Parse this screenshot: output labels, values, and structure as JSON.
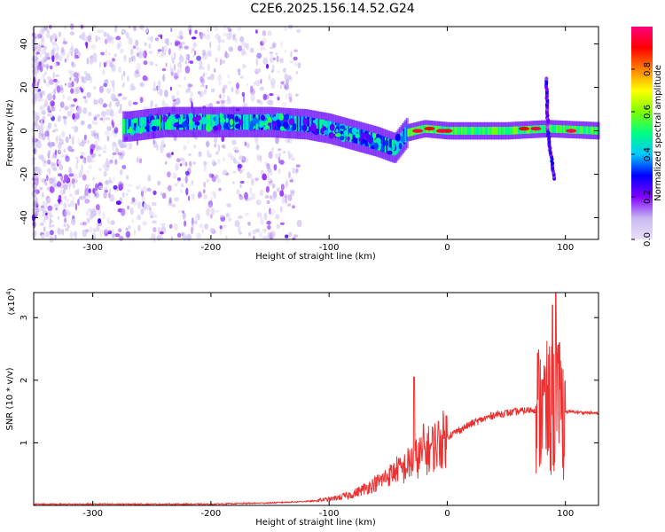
{
  "figure_title": "C2E6.2025.156.14.52.G24",
  "chart_data": [
    {
      "type": "heatmap",
      "title": "C2E6.2025.156.14.52.G24",
      "xlabel": "Height of straight line (km)",
      "ylabel": "Frequency (Hz)",
      "xlim": [
        -350,
        128
      ],
      "ylim": [
        -50,
        48
      ],
      "xticks": [
        -300,
        -200,
        -100,
        0,
        100
      ],
      "yticks": [
        -40,
        -20,
        0,
        20,
        40
      ],
      "colorbar": {
        "label": "Normalized spectral amplitude",
        "range": [
          0,
          1
        ],
        "ticks": [
          0.0,
          0.2,
          0.4,
          0.6,
          0.8
        ],
        "colormap": [
          "#e8e0f8",
          "#c8b8f0",
          "#8000ff",
          "#0000ff",
          "#00c8ff",
          "#00ff80",
          "#80ff00",
          "#ffff00",
          "#ff8000",
          "#ff0000",
          "#ff0080"
        ]
      },
      "ridge": {
        "description_points": [
          {
            "x": -270,
            "freq": 2
          },
          {
            "x": -240,
            "freq": 4
          },
          {
            "x": -200,
            "freq": 4
          },
          {
            "x": -150,
            "freq": 4
          },
          {
            "x": -120,
            "freq": 3
          },
          {
            "x": -100,
            "freq": 1
          },
          {
            "x": -80,
            "freq": -2
          },
          {
            "x": -60,
            "freq": -5
          },
          {
            "x": -45,
            "freq": -8
          },
          {
            "x": -35,
            "freq": -1
          },
          {
            "x": -20,
            "freq": 1
          },
          {
            "x": 0,
            "freq": 0
          },
          {
            "x": 50,
            "freq": 0
          },
          {
            "x": 85,
            "freq": 1
          },
          {
            "x": 128,
            "freq": 0
          }
        ],
        "peaks": [
          {
            "x": -25,
            "freq": 0,
            "amplitude": 0.95
          },
          {
            "x": -15,
            "freq": 1,
            "amplitude": 0.9
          },
          {
            "x": -5,
            "freq": 0,
            "amplitude": 0.95
          },
          {
            "x": 0,
            "freq": 0,
            "amplitude": 0.92
          },
          {
            "x": 65,
            "freq": 1,
            "amplitude": 0.9
          },
          {
            "x": 75,
            "freq": 1,
            "amplitude": 0.95
          },
          {
            "x": 105,
            "freq": 0,
            "amplitude": 0.97
          }
        ],
        "spike": {
          "x": 85,
          "freq_range": [
            -22,
            24
          ]
        }
      }
    },
    {
      "type": "line",
      "xlabel": "Height of straight line (km)",
      "ylabel": "SNR (10 * v/v)",
      "multiplier": "(x10^4)",
      "multiplier_base": "(x10",
      "multiplier_exp": "4",
      "xlim": [
        -350,
        128
      ],
      "ylim": [
        0,
        3.4
      ],
      "xticks": [
        -300,
        -200,
        -100,
        0,
        100
      ],
      "yticks": [
        1,
        2,
        3
      ],
      "color": "#ee3030",
      "envelope": [
        {
          "x": -350,
          "y": 0.02
        },
        {
          "x": -200,
          "y": 0.02
        },
        {
          "x": -150,
          "y": 0.04
        },
        {
          "x": -100,
          "y": 0.08
        },
        {
          "x": -80,
          "y": 0.15
        },
        {
          "x": -60,
          "y": 0.3
        },
        {
          "x": -45,
          "y": 0.45
        },
        {
          "x": -30,
          "y": 0.7
        },
        {
          "x": -15,
          "y": 0.9
        },
        {
          "x": 0,
          "y": 1.1
        },
        {
          "x": 20,
          "y": 1.3
        },
        {
          "x": 40,
          "y": 1.45
        },
        {
          "x": 60,
          "y": 1.5
        },
        {
          "x": 80,
          "y": 1.55
        },
        {
          "x": 90,
          "y": 1.5
        },
        {
          "x": 100,
          "y": 1.5
        },
        {
          "x": 128,
          "y": 1.47
        }
      ],
      "spikes": [
        {
          "x": -28,
          "y": 2.05
        },
        {
          "x": -20,
          "y": 1.3
        },
        {
          "x": 80,
          "y": 2.0
        },
        {
          "x": 89,
          "y": 3.2
        },
        {
          "x": 92,
          "y": 3.4
        },
        {
          "x": 95,
          "y": 2.6
        }
      ]
    }
  ]
}
